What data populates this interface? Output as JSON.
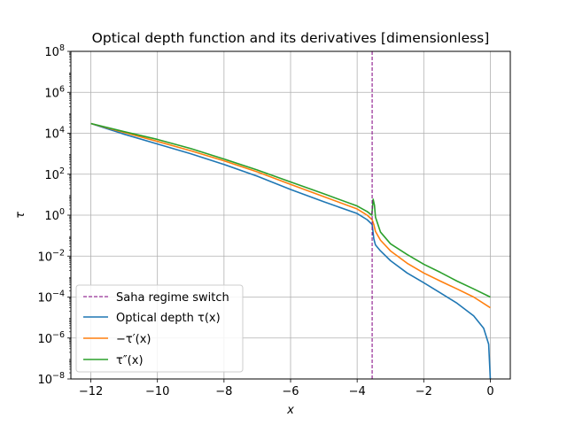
{
  "chart_data": {
    "type": "line",
    "title": "Optical depth function and its derivatives [dimensionless]",
    "xlabel": "x",
    "ylabel": "τ",
    "yscale": "log",
    "xlim": [
      -12.6,
      0.6
    ],
    "ylim": [
      1e-08,
      100000000.0
    ],
    "grid": true,
    "xticks": [
      -12,
      -10,
      -8,
      -6,
      -4,
      -2,
      0
    ],
    "xtick_labels": [
      "−12",
      "−10",
      "−8",
      "−6",
      "−4",
      "−2",
      "0"
    ],
    "yticks": [
      -8,
      -6,
      -4,
      -2,
      0,
      2,
      4,
      6,
      8
    ],
    "ytick_labels": [
      {
        "base": "10",
        "exp": "−8"
      },
      {
        "base": "10",
        "exp": "−6"
      },
      {
        "base": "10",
        "exp": "−4"
      },
      {
        "base": "10",
        "exp": "−2"
      },
      {
        "base": "10",
        "exp": "0"
      },
      {
        "base": "10",
        "exp": "2"
      },
      {
        "base": "10",
        "exp": "4"
      },
      {
        "base": "10",
        "exp": "6"
      },
      {
        "base": "10",
        "exp": "8"
      }
    ],
    "vline": {
      "x": -3.55,
      "label": "Saha regime switch",
      "color": "#800080",
      "style": "dashed"
    },
    "legend_position": "lower-left",
    "series": [
      {
        "name": "Optical depth τ(x)",
        "color": "#1f77b4",
        "x": [
          -12,
          -11,
          -10,
          -9,
          -8,
          -7,
          -6,
          -5,
          -4,
          -3.7,
          -3.55,
          -3.5,
          -3.45,
          -3.3,
          -3,
          -2.5,
          -2,
          -1.5,
          -1,
          -0.5,
          -0.2,
          -0.05,
          0
        ],
        "y": [
          30000,
          9000,
          3000,
          1000,
          300,
          80,
          18,
          4.5,
          1.2,
          0.6,
          0.35,
          0.07,
          0.035,
          0.018,
          0.006,
          0.0015,
          0.0005,
          0.00016,
          5e-05,
          1.2e-05,
          3e-06,
          5e-07,
          1e-08
        ]
      },
      {
        "name": "−τ′(x)",
        "color": "#ff7f0e",
        "x": [
          -12,
          -11,
          -10,
          -9,
          -8,
          -7,
          -6,
          -5,
          -4,
          -3.7,
          -3.55,
          -3.5,
          -3.45,
          -3.3,
          -3,
          -2.5,
          -2,
          -1.5,
          -1,
          -0.5,
          0
        ],
        "y": [
          30000,
          11000,
          4000,
          1400,
          450,
          130,
          32,
          8,
          2,
          1,
          0.6,
          0.35,
          0.16,
          0.06,
          0.018,
          0.0045,
          0.0015,
          0.0006,
          0.00025,
          0.0001,
          3e-05
        ]
      },
      {
        "name": "τ″(x)",
        "color": "#2ca02c",
        "x": [
          -12,
          -11,
          -10,
          -9,
          -8,
          -7,
          -6,
          -5,
          -4,
          -3.7,
          -3.56,
          -3.52,
          -3.48,
          -3.45,
          -3.3,
          -3,
          -2.5,
          -2,
          -1.5,
          -1,
          -0.5,
          0
        ],
        "y": [
          30000,
          12000,
          5000,
          1800,
          550,
          160,
          42,
          11,
          2.8,
          1.5,
          1.0,
          6,
          3,
          0.8,
          0.15,
          0.04,
          0.012,
          0.004,
          0.0016,
          0.0006,
          0.00025,
          0.0001
        ]
      }
    ]
  }
}
